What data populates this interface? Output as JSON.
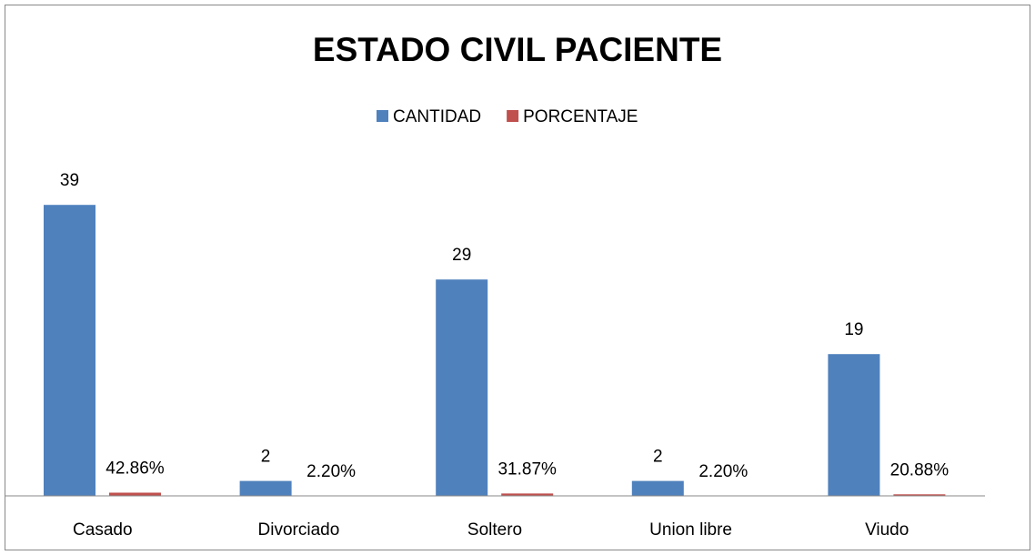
{
  "chart_data": {
    "type": "bar",
    "title": "ESTADO CIVIL PACIENTE",
    "categories": [
      "Casado",
      "Divorciado",
      "Soltero",
      "Union libre",
      "Viudo"
    ],
    "series": [
      {
        "name": "CANTIDAD",
        "color": "#4f81bd",
        "values": [
          39,
          2,
          29,
          2,
          19
        ]
      },
      {
        "name": "PORCENTAJE",
        "color": "#c0504d",
        "values": [
          0.4286,
          0.022,
          0.3187,
          0.022,
          0.2088
        ],
        "value_labels": [
          "42.86%",
          "2.20%",
          "31.87%",
          "2.20%",
          "20.88%"
        ]
      }
    ],
    "ylim": [
      0,
      45
    ],
    "legend": "top"
  }
}
